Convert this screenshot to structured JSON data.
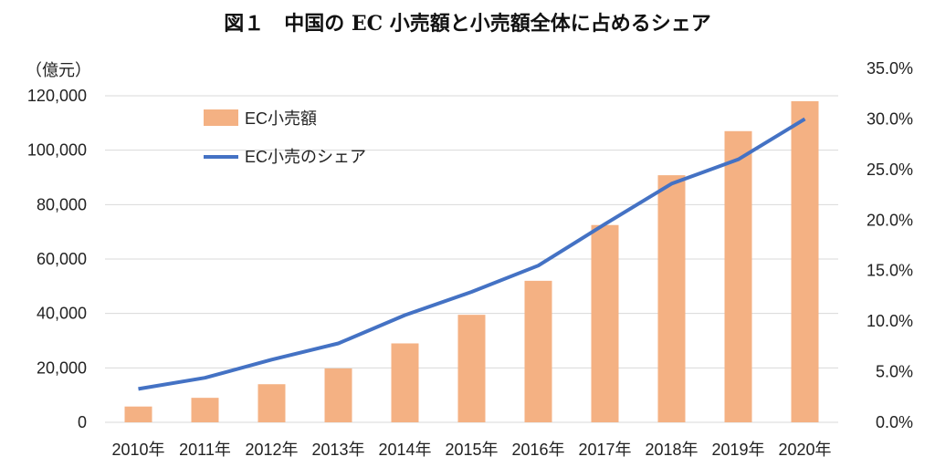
{
  "title": "図１　中国の EC 小売額と小売額全体に占めるシェア",
  "colors": {
    "bar": "#F4B183",
    "line": "#4472C4",
    "grid": "#d9d9d9"
  },
  "chart_data": {
    "type": "bar",
    "categories": [
      "2010年",
      "2011年",
      "2012年",
      "2013年",
      "2014年",
      "2015年",
      "2016年",
      "2017年",
      "2018年",
      "2019年",
      "2020年"
    ],
    "series": [
      {
        "name": "EC小売額",
        "type": "bar",
        "axis": "left",
        "values": [
          5800,
          9000,
          14000,
          19800,
          29000,
          39500,
          52000,
          72500,
          90800,
          107000,
          118000
        ]
      },
      {
        "name": "EC小売のシェア",
        "type": "line",
        "axis": "right",
        "values": [
          3.3,
          4.4,
          6.2,
          7.8,
          10.6,
          12.9,
          15.5,
          19.6,
          23.6,
          26.0,
          30.0
        ]
      }
    ],
    "y_left": {
      "unit_label": "（億元）",
      "ylim": [
        0,
        120000
      ],
      "ticks": [
        "0",
        "20,000",
        "40,000",
        "60,000",
        "80,000",
        "100,000",
        "120,000"
      ]
    },
    "y_right": {
      "ylim": [
        0,
        35
      ],
      "ticks": [
        "0.0%",
        "5.0%",
        "10.0%",
        "15.0%",
        "20.0%",
        "25.0%",
        "30.0%",
        "35.0%"
      ]
    },
    "legend": [
      "EC小売額",
      "EC小売のシェア"
    ],
    "legend_position": "top-left",
    "grid": true
  }
}
